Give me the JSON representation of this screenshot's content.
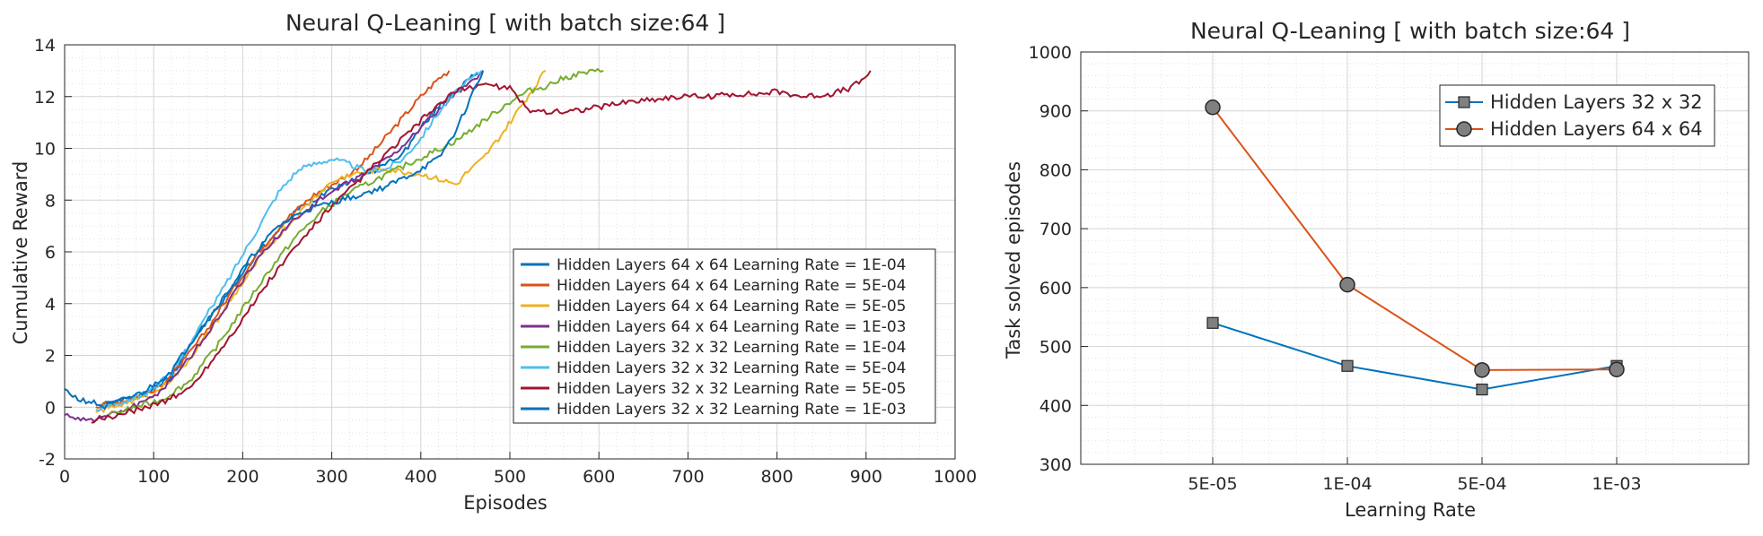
{
  "chart_data": [
    {
      "type": "line",
      "title": "Neural Q-Leaning [ with batch size:64 ]",
      "xlabel": "Episodes",
      "ylabel": "Cumulative Reward",
      "xlim": [
        0,
        1000
      ],
      "ylim": [
        -2,
        14
      ],
      "xticks": [
        0,
        100,
        200,
        300,
        400,
        500,
        600,
        700,
        800,
        900,
        1000
      ],
      "yticks": [
        -2,
        0,
        2,
        4,
        6,
        8,
        10,
        12,
        14
      ],
      "grid": true,
      "minor_grid": true,
      "legend_position": "lower-right",
      "series": [
        {
          "name": "Hidden Layers 64 x 64 Learning Rate = 1E-04",
          "color": "#0072BD",
          "points": [
            [
              40,
              0.1
            ],
            [
              70,
              0.3
            ],
            [
              100,
              0.7
            ],
            [
              120,
              1.2
            ],
            [
              140,
              2.4
            ],
            [
              160,
              3.3
            ],
            [
              180,
              4.2
            ],
            [
              200,
              5.2
            ],
            [
              220,
              6.1
            ],
            [
              240,
              6.8
            ],
            [
              260,
              7.6
            ],
            [
              280,
              8.0
            ],
            [
              300,
              8.5
            ],
            [
              320,
              8.7
            ],
            [
              340,
              9.0
            ],
            [
              360,
              9.4
            ],
            [
              380,
              9.8
            ],
            [
              400,
              10.8
            ],
            [
              420,
              11.6
            ],
            [
              440,
              12.3
            ],
            [
              460,
              12.8
            ],
            [
              470,
              13.0
            ]
          ]
        },
        {
          "name": "Hidden Layers 64 x 64 Learning Rate = 5E-04",
          "color": "#D95319",
          "points": [
            [
              35,
              0.0
            ],
            [
              70,
              0.3
            ],
            [
              100,
              0.6
            ],
            [
              130,
              1.6
            ],
            [
              160,
              3.0
            ],
            [
              190,
              4.6
            ],
            [
              220,
              6.1
            ],
            [
              250,
              7.3
            ],
            [
              280,
              8.2
            ],
            [
              300,
              8.6
            ],
            [
              320,
              9.0
            ],
            [
              340,
              9.6
            ],
            [
              360,
              10.4
            ],
            [
              380,
              11.2
            ],
            [
              400,
              12.0
            ],
            [
              420,
              12.7
            ],
            [
              432,
              13.0
            ]
          ]
        },
        {
          "name": "Hidden Layers 64 x 64 Learning Rate = 5E-05",
          "color": "#EDB120",
          "points": [
            [
              35,
              -0.2
            ],
            [
              70,
              0.2
            ],
            [
              100,
              0.5
            ],
            [
              130,
              1.4
            ],
            [
              160,
              2.8
            ],
            [
              190,
              4.3
            ],
            [
              220,
              5.8
            ],
            [
              250,
              7.0
            ],
            [
              280,
              8.1
            ],
            [
              300,
              8.7
            ],
            [
              320,
              9.0
            ],
            [
              340,
              9.1
            ],
            [
              360,
              9.2
            ],
            [
              380,
              9.1
            ],
            [
              400,
              9.0
            ],
            [
              420,
              8.8
            ],
            [
              440,
              8.6
            ],
            [
              450,
              9.0
            ],
            [
              470,
              9.6
            ],
            [
              490,
              10.5
            ],
            [
              510,
              11.5
            ],
            [
              530,
              12.5
            ],
            [
              540,
              13.0
            ]
          ]
        },
        {
          "name": "Hidden Layers 64 x 64 Learning Rate = 1E-03",
          "color": "#7E2F8E",
          "points": [
            [
              0,
              -0.3
            ],
            [
              30,
              -0.5
            ],
            [
              60,
              -0.2
            ],
            [
              90,
              0.2
            ],
            [
              110,
              0.7
            ],
            [
              140,
              1.9
            ],
            [
              170,
              3.3
            ],
            [
              200,
              4.9
            ],
            [
              230,
              6.3
            ],
            [
              260,
              7.3
            ],
            [
              290,
              8.1
            ],
            [
              310,
              8.5
            ],
            [
              340,
              9.1
            ],
            [
              370,
              9.8
            ],
            [
              400,
              10.8
            ],
            [
              430,
              11.8
            ],
            [
              460,
              12.7
            ],
            [
              470,
              13.0
            ]
          ]
        },
        {
          "name": "Hidden Layers 32 x 32 Learning Rate = 1E-04",
          "color": "#77AC30",
          "points": [
            [
              50,
              -0.3
            ],
            [
              80,
              0.0
            ],
            [
              110,
              0.3
            ],
            [
              140,
              1.0
            ],
            [
              170,
              2.3
            ],
            [
              200,
              3.8
            ],
            [
              230,
              5.3
            ],
            [
              260,
              6.6
            ],
            [
              290,
              7.6
            ],
            [
              320,
              8.3
            ],
            [
              350,
              8.8
            ],
            [
              380,
              9.3
            ],
            [
              410,
              9.8
            ],
            [
              440,
              10.3
            ],
            [
              460,
              10.8
            ],
            [
              480,
              11.3
            ],
            [
              500,
              11.8
            ],
            [
              520,
              12.2
            ],
            [
              540,
              12.4
            ],
            [
              560,
              12.7
            ],
            [
              580,
              12.9
            ],
            [
              605,
              13.0
            ]
          ]
        },
        {
          "name": "Hidden Layers 32 x 32 Learning Rate = 5E-04",
          "color": "#4DBEEE",
          "points": [
            [
              35,
              -0.1
            ],
            [
              60,
              0.2
            ],
            [
              90,
              0.5
            ],
            [
              120,
              1.3
            ],
            [
              150,
              3.0
            ],
            [
              180,
              4.7
            ],
            [
              210,
              6.5
            ],
            [
              240,
              8.3
            ],
            [
              260,
              9.1
            ],
            [
              280,
              9.4
            ],
            [
              300,
              9.6
            ],
            [
              320,
              9.4
            ],
            [
              340,
              9.1
            ],
            [
              360,
              9.2
            ],
            [
              380,
              9.6
            ],
            [
              400,
              10.4
            ],
            [
              420,
              11.4
            ],
            [
              440,
              12.2
            ],
            [
              460,
              12.8
            ],
            [
              468,
              13.0
            ]
          ]
        },
        {
          "name": "Hidden Layers 32 x 32 Learning Rate = 5E-05",
          "color": "#A2142F",
          "points": [
            [
              30,
              -0.6
            ],
            [
              60,
              -0.3
            ],
            [
              90,
              0.0
            ],
            [
              110,
              0.2
            ],
            [
              140,
              0.7
            ],
            [
              170,
              2.0
            ],
            [
              200,
              3.4
            ],
            [
              230,
              4.9
            ],
            [
              260,
              6.2
            ],
            [
              290,
              7.4
            ],
            [
              320,
              8.4
            ],
            [
              350,
              9.4
            ],
            [
              380,
              10.4
            ],
            [
              410,
              11.4
            ],
            [
              440,
              12.2
            ],
            [
              470,
              12.5
            ],
            [
              500,
              12.3
            ],
            [
              520,
              11.5
            ],
            [
              550,
              11.4
            ],
            [
              580,
              11.5
            ],
            [
              600,
              11.6
            ],
            [
              630,
              11.8
            ],
            [
              660,
              11.9
            ],
            [
              690,
              12.0
            ],
            [
              720,
              12.0
            ],
            [
              750,
              12.1
            ],
            [
              780,
              12.1
            ],
            [
              800,
              12.2
            ],
            [
              830,
              12.0
            ],
            [
              860,
              12.1
            ],
            [
              880,
              12.3
            ],
            [
              895,
              12.6
            ],
            [
              905,
              13.0
            ]
          ]
        },
        {
          "name": "Hidden Layers 32 x 32 Learning Rate = 1E-03",
          "color": "#0072BD",
          "points": [
            [
              0,
              0.7
            ],
            [
              15,
              0.3
            ],
            [
              30,
              0.2
            ],
            [
              45,
              0.0
            ],
            [
              60,
              0.2
            ],
            [
              90,
              0.6
            ],
            [
              120,
              1.4
            ],
            [
              150,
              2.9
            ],
            [
              180,
              4.3
            ],
            [
              210,
              5.8
            ],
            [
              240,
              7.0
            ],
            [
              270,
              7.6
            ],
            [
              300,
              7.9
            ],
            [
              330,
              8.2
            ],
            [
              360,
              8.5
            ],
            [
              390,
              9.0
            ],
            [
              420,
              9.6
            ],
            [
              440,
              10.7
            ],
            [
              455,
              11.9
            ],
            [
              465,
              12.6
            ],
            [
              470,
              13.0
            ]
          ]
        }
      ]
    },
    {
      "type": "line",
      "title": "Neural Q-Leaning [ with batch size:64 ]",
      "xlabel": "Learning Rate",
      "ylabel": "Task solved episodes",
      "categories": [
        "5E-05",
        "1E-04",
        "5E-04",
        "1E-03"
      ],
      "ylim": [
        300,
        1000
      ],
      "yticks": [
        300,
        400,
        500,
        600,
        700,
        800,
        900,
        1000
      ],
      "grid": true,
      "minor_grid": true,
      "legend_position": "top-right",
      "series": [
        {
          "name": "Hidden Layers 32 x 32",
          "color": "#0072BD",
          "marker": "square",
          "values": [
            540,
            467,
            427,
            467
          ]
        },
        {
          "name": "Hidden Layers 64 x 64",
          "color": "#D95319",
          "marker": "circle",
          "values": [
            906,
            605,
            460,
            461
          ]
        }
      ]
    }
  ]
}
